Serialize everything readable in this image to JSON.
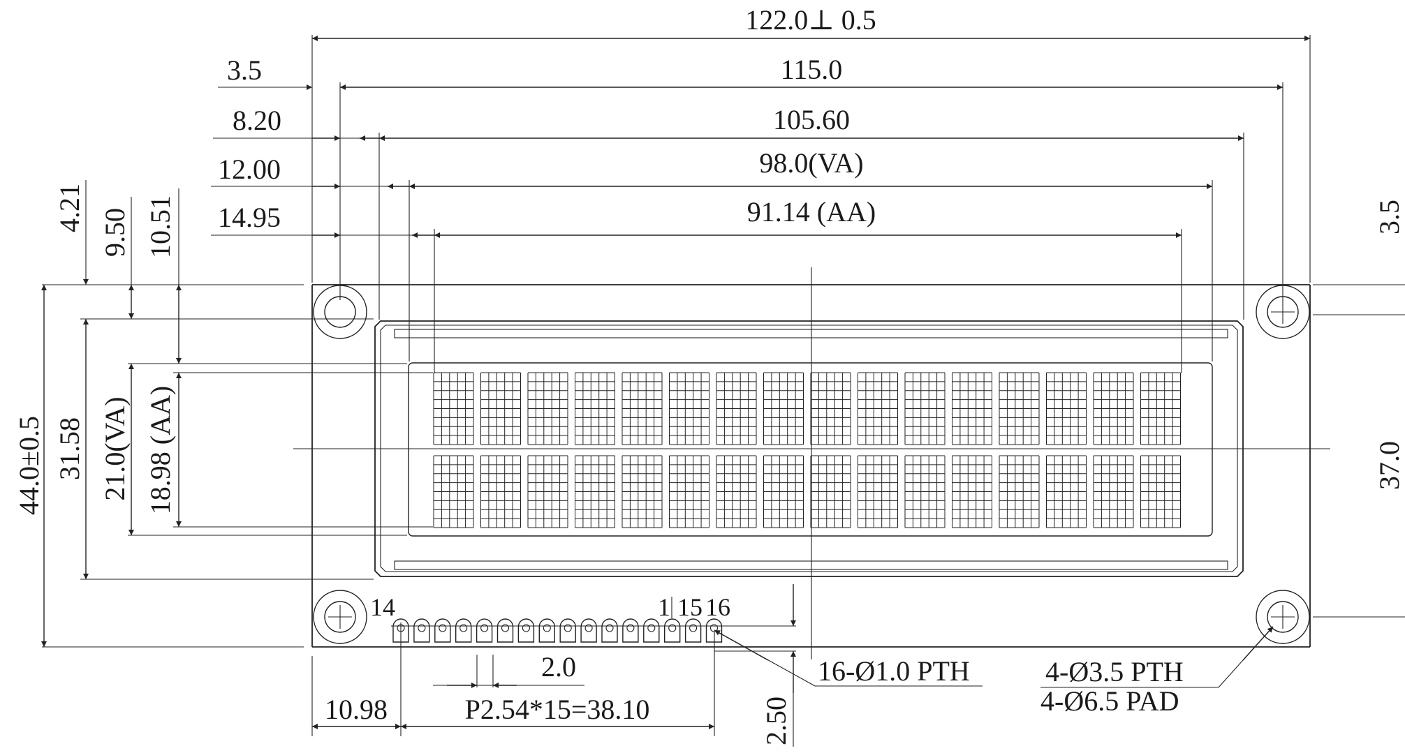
{
  "dims": {
    "overall_width": "122.0⊥ 0.5",
    "hole_pitch": "115.0",
    "bezel_width": "105.60",
    "va_width": "98.0(VA)",
    "aa_width": "91.14 (AA)",
    "left_3_5": "3.5",
    "left_8_20": "8.20",
    "left_12_00": "12.00",
    "left_14_95": "14.95",
    "top_4_21": "4.21",
    "top_9_50": "9.50",
    "top_10_51": "10.51",
    "overall_height": "44.0±0.5",
    "bezel_height": "31.58",
    "va_height": "21.0(VA)",
    "aa_height": "18.98 (AA)",
    "right_3_5": "3.5",
    "right_37_0": "37.0",
    "pin_14": "14",
    "pin_1": "1",
    "pin_15": "15",
    "pin_16": "16",
    "pin_width": "2.0",
    "pin_offset": "10.98",
    "pin_pitch": "P2.54*15=38.10",
    "pin_height": "2.50",
    "pth_note": "16-Ø1.0 PTH",
    "mount_pth": "4-Ø3.5 PTH",
    "mount_pad": "4-Ø6.5 PAD"
  },
  "lcd": {
    "rows": 2,
    "characters_per_row": 16,
    "dot_columns": 5,
    "dot_rows": 8
  },
  "connector": {
    "pin_count": 16
  }
}
